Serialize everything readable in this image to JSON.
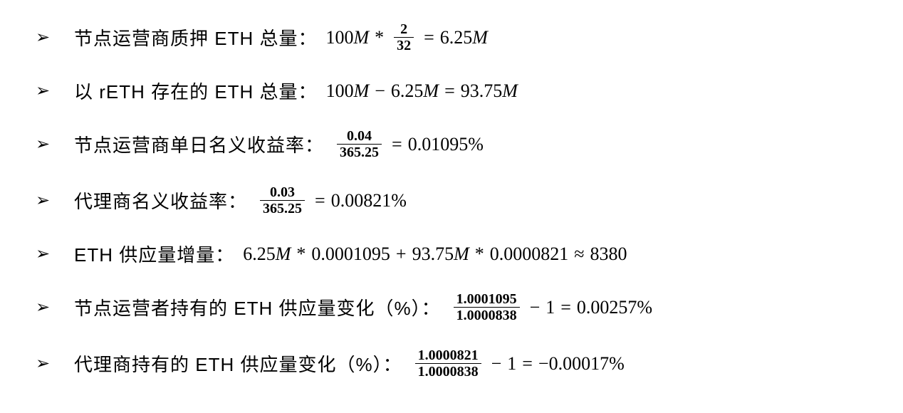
{
  "bullet_glyph": "➢",
  "text_color": "#000000",
  "background_color": "#ffffff",
  "label_fontsize": 26,
  "frac_fontsize": 20,
  "items": [
    {
      "label": "节点运营商质押 ETH 总量：",
      "expr_parts": [
        "100",
        "M",
        "*"
      ],
      "frac": {
        "num": "2",
        "den": "32"
      },
      "tail_parts": [
        "=",
        "6.25",
        "M"
      ]
    },
    {
      "label": "以 rETH 存在的 ETH 总量：",
      "expr_parts": [
        "100",
        "M",
        "−",
        "6.25",
        "M",
        "=",
        "93.75",
        "M"
      ]
    },
    {
      "label": "节点运营商单日名义收益率：",
      "frac": {
        "num": "0.04",
        "den": "365.25"
      },
      "tail_parts": [
        "=",
        "0.01095%"
      ]
    },
    {
      "label": "代理商名义收益率：",
      "frac": {
        "num": "0.03",
        "den": "365.25"
      },
      "tail_parts": [
        "=",
        "0.00821%"
      ]
    },
    {
      "label": "ETH 供应量增量：",
      "expr_parts": [
        "6.25",
        "M",
        "*",
        "0.0001095",
        "+",
        "93.75",
        "M",
        "*",
        "0.0000821",
        " ≈ ",
        "8380"
      ]
    },
    {
      "label": "节点运营者持有的 ETH 供应量变化（%）：",
      "frac": {
        "num": "1.0001095",
        "den": "1.0000838"
      },
      "tail_parts": [
        "−",
        "1",
        "=",
        "0.00257%"
      ]
    },
    {
      "label": "代理商持有的 ETH 供应量变化（%）：",
      "frac": {
        "num": "1.0000821",
        "den": "1.0000838"
      },
      "tail_parts": [
        "−",
        "1",
        "=",
        "−0.00017%"
      ]
    }
  ]
}
